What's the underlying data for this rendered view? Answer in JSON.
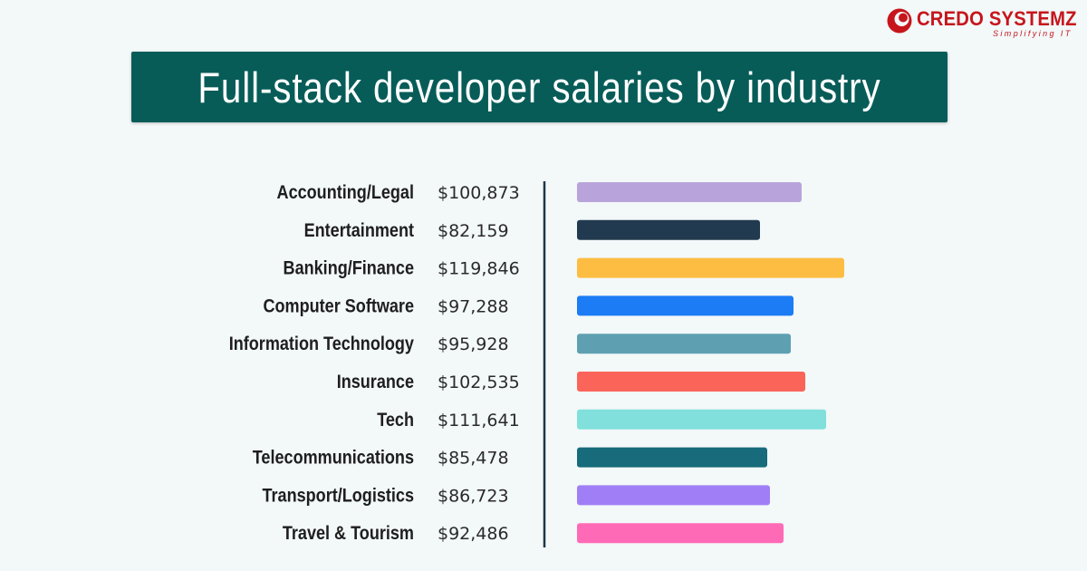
{
  "brand": {
    "name": "CREDO SYSTEMZ",
    "tagline": "Simplifying IT",
    "color": "#c6161c"
  },
  "banner": {
    "title": "Full-stack developer salaries by industry",
    "background": "#075c58"
  },
  "chart_data": {
    "type": "bar",
    "orientation": "horizontal",
    "title": "Full-stack developer salaries by industry",
    "xlabel": "",
    "ylabel": "",
    "grid": false,
    "legend": "none",
    "xlim": [
      0,
      125000
    ],
    "categories": [
      "Accounting/Legal",
      "Entertainment",
      "Banking/Finance",
      "Computer Software",
      "Information Technology",
      "Insurance",
      "Tech",
      "Telecommunications",
      "Transport/Logistics",
      "Travel & Tourism"
    ],
    "values": [
      100873,
      82159,
      119846,
      97288,
      95928,
      102535,
      111641,
      85478,
      86723,
      92486
    ],
    "value_labels": [
      "$100,873",
      "$82,159",
      "$119,846",
      "$97,288",
      "$95,928",
      "$102,535",
      "$111,641",
      "$85,478",
      "$86,723",
      "$92,486"
    ],
    "colors": [
      "#b8a4da",
      "#223a4f",
      "#fdbd42",
      "#1b7cf5",
      "#5ea0b1",
      "#fb6459",
      "#81e0db",
      "#176b7a",
      "#a07ef6",
      "#ff6ab6"
    ]
  }
}
